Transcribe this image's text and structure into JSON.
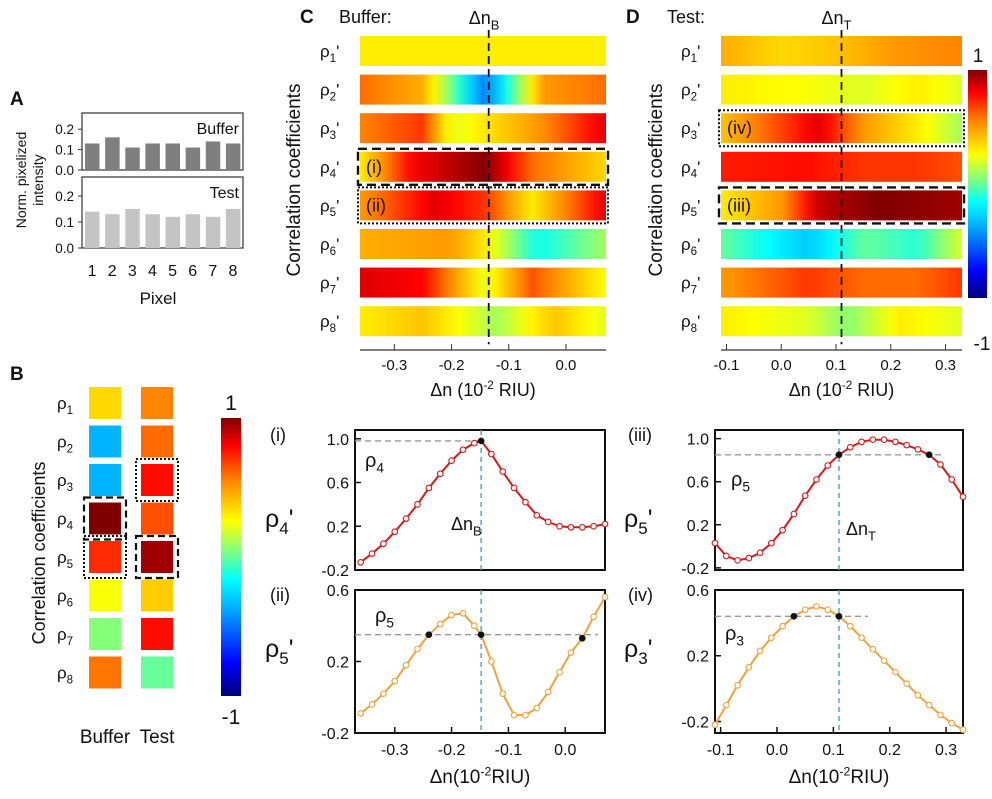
{
  "colors": {
    "bar_dark": "#7f7f7f",
    "bar_light": "#c4c4c4",
    "line_red": "#d7191c",
    "line_orange": "#f2a23a",
    "ref_line": "#999999",
    "vline": "#4b9cd3",
    "colormap": [
      "#00007f",
      "#0000ff",
      "#00a0ff",
      "#00ffff",
      "#80ff80",
      "#ffff00",
      "#ff8000",
      "#ff0000",
      "#800000"
    ]
  },
  "panel_labels": {
    "a": "A",
    "b": "B",
    "c": "C",
    "d": "D"
  },
  "chart_data": [
    {
      "id": "A",
      "type": "bar",
      "ylabel": "Norm. pixelized intensity",
      "xlabel": "Pixel",
      "categories": [
        "1",
        "2",
        "3",
        "4",
        "5",
        "6",
        "7",
        "8"
      ],
      "series": [
        {
          "name": "Buffer",
          "values": [
            0.13,
            0.16,
            0.11,
            0.13,
            0.13,
            0.11,
            0.14,
            0.13
          ]
        },
        {
          "name": "Test",
          "values": [
            0.14,
            0.13,
            0.15,
            0.13,
            0.12,
            0.13,
            0.12,
            0.15
          ]
        }
      ],
      "ylim": [
        0,
        0.25
      ],
      "yticks": [
        "0.2",
        "0.1",
        "0.0"
      ]
    },
    {
      "id": "B",
      "type": "heatmap",
      "ylabel": "Correlation coefficients",
      "rows": [
        "ρ1",
        "ρ2",
        "ρ3",
        "ρ4",
        "ρ5",
        "ρ6",
        "ρ7",
        "ρ8"
      ],
      "columns": [
        "Buffer",
        "Test"
      ],
      "values": [
        [
          0.35,
          0.55
        ],
        [
          -0.35,
          0.6
        ],
        [
          -0.35,
          0.78
        ],
        [
          1.0,
          0.65
        ],
        [
          0.72,
          0.95
        ],
        [
          0.25,
          0.38
        ],
        [
          0.05,
          0.78
        ],
        [
          0.58,
          0.0
        ]
      ],
      "highlight": {
        "dashed": [
          [
            3,
            0
          ],
          [
            4,
            1
          ]
        ],
        "dotted": [
          [
            4,
            0
          ],
          [
            2,
            1
          ]
        ]
      },
      "colorbar": {
        "max_label": "1",
        "min_label": "-1",
        "range": [
          -1,
          1
        ]
      }
    },
    {
      "id": "C",
      "type": "heatmap",
      "title": "Buffer:",
      "xlabel": "Δn (10⁻² RIU)",
      "ylabel": "Correlation coefficients",
      "rows": [
        "ρ1'",
        "ρ2'",
        "ρ3'",
        "ρ4'",
        "ρ5'",
        "ρ6'",
        "ρ7'",
        "ρ8'"
      ],
      "xlim": [
        -0.36,
        0.07
      ],
      "xticks": [
        "-0.3",
        "-0.2",
        "-0.1",
        "0.0"
      ],
      "xtick_values": [
        -0.3,
        -0.2,
        -0.1,
        0.0
      ],
      "marker": {
        "label": "Δn",
        "sub": "B",
        "x": -0.135
      },
      "boxes": [
        {
          "row": 3,
          "style": "dashed",
          "label": "(i)"
        },
        {
          "row": 4,
          "style": "dotted",
          "label": "(ii)"
        }
      ],
      "profiles": [
        [
          [
            -0.36,
            0.3
          ],
          [
            -0.26,
            0.3
          ],
          [
            -0.14,
            0.3
          ],
          [
            -0.04,
            0.3
          ],
          [
            0.07,
            0.3
          ]
        ],
        [
          [
            -0.36,
            0.6
          ],
          [
            -0.25,
            0.45
          ],
          [
            -0.14,
            -0.5
          ],
          [
            -0.04,
            0.5
          ],
          [
            0.07,
            0.6
          ]
        ],
        [
          [
            -0.36,
            0.55
          ],
          [
            -0.25,
            0.7
          ],
          [
            -0.2,
            0.2
          ],
          [
            -0.05,
            0.5
          ],
          [
            0.07,
            0.85
          ]
        ],
        [
          [
            -0.36,
            0.3
          ],
          [
            -0.27,
            0.8
          ],
          [
            -0.14,
            1.0
          ],
          [
            -0.06,
            0.6
          ],
          [
            0.07,
            0.35
          ]
        ],
        [
          [
            -0.36,
            0.5
          ],
          [
            -0.23,
            0.85
          ],
          [
            -0.14,
            0.7
          ],
          [
            -0.06,
            0.3
          ],
          [
            0.07,
            0.85
          ]
        ],
        [
          [
            -0.36,
            0.45
          ],
          [
            -0.2,
            0.5
          ],
          [
            -0.14,
            0.3
          ],
          [
            -0.05,
            -0.15
          ],
          [
            0.07,
            0.1
          ]
        ],
        [
          [
            -0.36,
            0.85
          ],
          [
            -0.25,
            0.8
          ],
          [
            -0.14,
            0.2
          ],
          [
            -0.06,
            0.65
          ],
          [
            0.07,
            0.25
          ]
        ],
        [
          [
            -0.36,
            0.3
          ],
          [
            -0.25,
            0.4
          ],
          [
            -0.12,
            0.1
          ],
          [
            -0.02,
            0.4
          ],
          [
            0.07,
            0.2
          ]
        ]
      ]
    },
    {
      "id": "D",
      "type": "heatmap",
      "title": "Test:",
      "xlabel": "Δn (10⁻² RIU)",
      "ylabel": "Correlation coefficients",
      "rows": [
        "ρ1'",
        "ρ2'",
        "ρ3'",
        "ρ4'",
        "ρ5'",
        "ρ6'",
        "ρ7'",
        "ρ8'"
      ],
      "xlim": [
        -0.11,
        0.33
      ],
      "xticks": [
        "-0.1",
        "0.0",
        "0.1",
        "0.2",
        "0.3"
      ],
      "xtick_values": [
        -0.1,
        0.0,
        0.1,
        0.2,
        0.3
      ],
      "marker": {
        "label": "Δn",
        "sub": "T",
        "x": 0.11
      },
      "boxes": [
        {
          "row": 2,
          "style": "dotted",
          "label": "(iv)"
        },
        {
          "row": 4,
          "style": "dashed",
          "label": "(iii)"
        }
      ],
      "profiles": [
        [
          [
            -0.11,
            0.45
          ],
          [
            0.0,
            0.35
          ],
          [
            0.1,
            0.4
          ],
          [
            0.2,
            0.5
          ],
          [
            0.33,
            0.55
          ]
        ],
        [
          [
            -0.11,
            0.3
          ],
          [
            0.05,
            0.25
          ],
          [
            0.15,
            0.2
          ],
          [
            0.25,
            0.3
          ],
          [
            0.33,
            0.2
          ]
        ],
        [
          [
            -0.11,
            0.4
          ],
          [
            0.07,
            0.85
          ],
          [
            0.15,
            0.5
          ],
          [
            0.25,
            0.3
          ],
          [
            0.33,
            0.1
          ]
        ],
        [
          [
            -0.11,
            0.75
          ],
          [
            0.05,
            0.78
          ],
          [
            0.15,
            0.7
          ],
          [
            0.25,
            0.7
          ],
          [
            0.33,
            0.65
          ]
        ],
        [
          [
            -0.11,
            0.3
          ],
          [
            0.0,
            0.5
          ],
          [
            0.07,
            0.9
          ],
          [
            0.18,
            1.0
          ],
          [
            0.33,
            0.95
          ]
        ],
        [
          [
            -0.11,
            0.0
          ],
          [
            0.05,
            -0.3
          ],
          [
            0.15,
            0.0
          ],
          [
            0.25,
            -0.1
          ],
          [
            0.33,
            0.2
          ]
        ],
        [
          [
            -0.11,
            0.5
          ],
          [
            0.05,
            0.7
          ],
          [
            0.15,
            0.6
          ],
          [
            0.25,
            0.6
          ],
          [
            0.33,
            0.7
          ]
        ],
        [
          [
            -0.11,
            0.3
          ],
          [
            0.05,
            0.2
          ],
          [
            0.12,
            0.05
          ],
          [
            0.22,
            0.3
          ],
          [
            0.33,
            0.2
          ]
        ]
      ]
    },
    {
      "id": "C(i)",
      "type": "line",
      "tag": "(i)",
      "ylabel": "ρ4'",
      "inset_label": "ρ4",
      "marker": {
        "label": "Δn",
        "sub": "B"
      },
      "xlim": [
        -0.37,
        0.07
      ],
      "ylim": [
        -0.2,
        1.08
      ],
      "yticks": [
        -0.2,
        0.2,
        0.6,
        1.0
      ],
      "ytick_labels": [
        "-0.2",
        "0.2",
        "0.6",
        "1.0"
      ],
      "vline_x": -0.148,
      "ref_y": 0.98,
      "x": [
        -0.36,
        -0.34,
        -0.32,
        -0.3,
        -0.28,
        -0.26,
        -0.24,
        -0.22,
        -0.2,
        -0.18,
        -0.16,
        -0.148,
        -0.13,
        -0.11,
        -0.09,
        -0.07,
        -0.05,
        -0.03,
        -0.01,
        0.01,
        0.03,
        0.05,
        0.07
      ],
      "y": [
        -0.13,
        -0.05,
        0.04,
        0.15,
        0.27,
        0.4,
        0.55,
        0.68,
        0.8,
        0.9,
        0.96,
        0.98,
        0.86,
        0.7,
        0.55,
        0.42,
        0.3,
        0.24,
        0.2,
        0.19,
        0.19,
        0.2,
        0.22
      ],
      "filled_points": [
        11
      ],
      "color_key": "line_red"
    },
    {
      "id": "C(ii)",
      "type": "line",
      "tag": "(ii)",
      "ylabel": "ρ5'",
      "inset_label": "ρ5",
      "xlim": [
        -0.37,
        0.07
      ],
      "ylim": [
        -0.2,
        0.6
      ],
      "yticks": [
        -0.2,
        0.2,
        0.6
      ],
      "ytick_labels": [
        "-0.2",
        "0.2",
        "0.6"
      ],
      "xticks": [
        -0.3,
        -0.2,
        -0.1,
        0.0
      ],
      "xtick_labels": [
        "-0.3",
        "-0.2",
        "-0.1",
        "0.0"
      ],
      "xlabel": "Δn(10⁻²RIU)",
      "vline_x": -0.148,
      "ref_y": 0.35,
      "x": [
        -0.36,
        -0.34,
        -0.32,
        -0.3,
        -0.28,
        -0.26,
        -0.24,
        -0.22,
        -0.2,
        -0.18,
        -0.16,
        -0.148,
        -0.13,
        -0.11,
        -0.09,
        -0.07,
        -0.05,
        -0.03,
        -0.01,
        0.01,
        0.03,
        0.05,
        0.07
      ],
      "y": [
        -0.09,
        -0.04,
        0.02,
        0.09,
        0.18,
        0.27,
        0.35,
        0.41,
        0.46,
        0.47,
        0.4,
        0.35,
        0.2,
        0.02,
        -0.1,
        -0.1,
        -0.06,
        0.03,
        0.14,
        0.25,
        0.33,
        0.45,
        0.56
      ],
      "filled_points": [
        6,
        11,
        20
      ],
      "color_key": "line_orange"
    },
    {
      "id": "D(iii)",
      "type": "line",
      "tag": "(iii)",
      "ylabel": "ρ5'",
      "inset_label": "ρ5",
      "marker": {
        "label": "Δn",
        "sub": "T"
      },
      "xlim": [
        -0.11,
        0.33
      ],
      "ylim": [
        -0.22,
        1.08
      ],
      "yticks": [
        -0.2,
        0.2,
        0.6,
        1.0
      ],
      "ytick_labels": [
        "-0.2",
        "0.2",
        "0.6",
        "1.0"
      ],
      "vline_x": 0.11,
      "ref_y": 0.85,
      "x": [
        -0.11,
        -0.09,
        -0.07,
        -0.05,
        -0.03,
        -0.01,
        0.01,
        0.03,
        0.05,
        0.07,
        0.09,
        0.11,
        0.13,
        0.15,
        0.17,
        0.19,
        0.21,
        0.23,
        0.25,
        0.27,
        0.29,
        0.31,
        0.33
      ],
      "y": [
        0.03,
        -0.09,
        -0.13,
        -0.11,
        -0.06,
        0.03,
        0.15,
        0.3,
        0.47,
        0.62,
        0.75,
        0.85,
        0.92,
        0.97,
        0.99,
        0.99,
        0.97,
        0.94,
        0.9,
        0.85,
        0.76,
        0.62,
        0.46
      ],
      "filled_points": [
        11,
        19
      ],
      "color_key": "line_red"
    },
    {
      "id": "D(iv)",
      "type": "line",
      "tag": "(iv)",
      "ylabel": "ρ3'",
      "inset_label": "ρ3",
      "xlim": [
        -0.11,
        0.33
      ],
      "ylim": [
        -0.27,
        0.6
      ],
      "yticks": [
        -0.2,
        0.2,
        0.6
      ],
      "ytick_labels": [
        "-0.2",
        "0.2",
        "0.6"
      ],
      "xticks": [
        -0.1,
        0.0,
        0.1,
        0.2,
        0.3
      ],
      "xtick_labels": [
        "-0.1",
        "0.0",
        "0.1",
        "0.2",
        "0.3"
      ],
      "xlabel": "Δn(10⁻²RIU)",
      "vline_x": 0.11,
      "ref_y": 0.44,
      "x": [
        -0.11,
        -0.09,
        -0.07,
        -0.05,
        -0.03,
        -0.01,
        0.01,
        0.03,
        0.05,
        0.07,
        0.09,
        0.11,
        0.13,
        0.15,
        0.17,
        0.19,
        0.21,
        0.23,
        0.25,
        0.27,
        0.29,
        0.31,
        0.33
      ],
      "y": [
        -0.22,
        -0.1,
        0.02,
        0.13,
        0.23,
        0.31,
        0.38,
        0.44,
        0.48,
        0.5,
        0.48,
        0.44,
        0.38,
        0.31,
        0.24,
        0.17,
        0.1,
        0.03,
        -0.04,
        -0.1,
        -0.16,
        -0.21,
        -0.25
      ],
      "filled_points": [
        7,
        11
      ],
      "color_key": "line_orange"
    }
  ]
}
